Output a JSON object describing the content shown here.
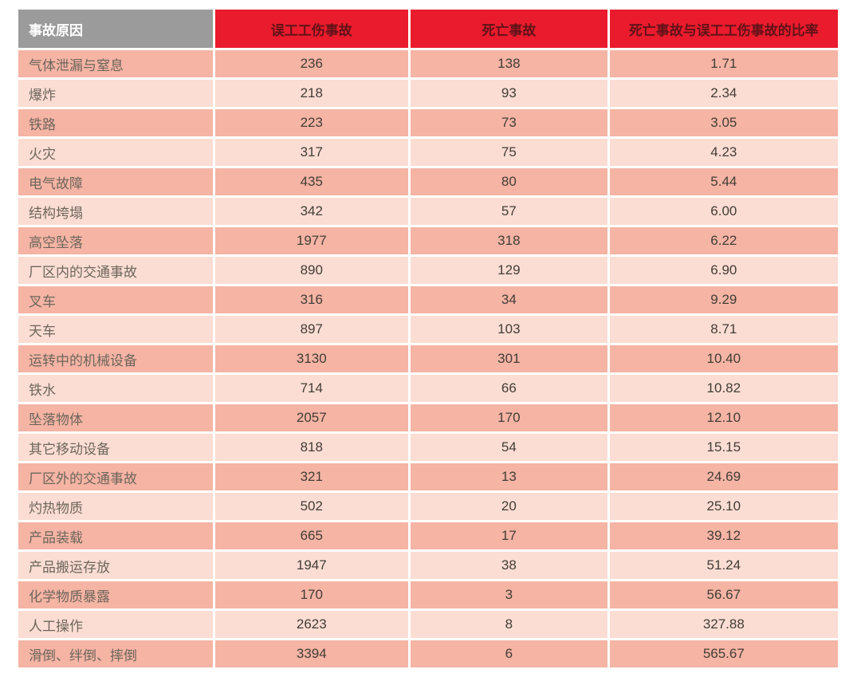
{
  "chart_data": {
    "type": "table",
    "columns": [
      "事故原因",
      "误工工伤事故",
      "死亡事故",
      "死亡事故与误工工伤事故的比率"
    ],
    "rows": [
      [
        "气体泄漏与窒息",
        "236",
        "138",
        "1.71"
      ],
      [
        "爆炸",
        "218",
        "93",
        "2.34"
      ],
      [
        "铁路",
        "223",
        "73",
        "3.05"
      ],
      [
        "火灾",
        "317",
        "75",
        "4.23"
      ],
      [
        "电气故障",
        "435",
        "80",
        "5.44"
      ],
      [
        "结构垮塌",
        "342",
        "57",
        "6.00"
      ],
      [
        "高空坠落",
        "1977",
        "318",
        "6.22"
      ],
      [
        "厂区内的交通事故",
        "890",
        "129",
        "6.90"
      ],
      [
        "叉车",
        "316",
        "34",
        "9.29"
      ],
      [
        "天车",
        "897",
        "103",
        "8.71"
      ],
      [
        "运转中的机械设备",
        "3130",
        "301",
        "10.40"
      ],
      [
        "铁水",
        "714",
        "66",
        "10.82"
      ],
      [
        "坠落物体",
        "2057",
        "170",
        "12.10"
      ],
      [
        "其它移动设备",
        "818",
        "54",
        "15.15"
      ],
      [
        "厂区外的交通事故",
        "321",
        "13",
        "24.69"
      ],
      [
        "灼热物质",
        "502",
        "20",
        "25.10"
      ],
      [
        "产品装载",
        "665",
        "17",
        "39.12"
      ],
      [
        "产品搬运存放",
        "1947",
        "38",
        "51.24"
      ],
      [
        "化学物质暴露",
        "170",
        "3",
        "56.67"
      ],
      [
        "人工操作",
        "2623",
        "8",
        "327.88"
      ],
      [
        "滑倒、绊倒、摔倒",
        "3394",
        "6",
        "565.67"
      ]
    ],
    "layout": {
      "striping": "alternating rows, odd rows darker",
      "first_column_align": "left",
      "other_columns_align": "center"
    }
  },
  "colors": {
    "header_gray": "#9c9b9b",
    "header_red": "#ea1b2c",
    "header_red_text": "#611219",
    "header_gray_text": "#ffffff",
    "row_dark": "#f5b4a4",
    "row_light": "#fbddd3",
    "label_text": "#6e665c",
    "number_text": "#433d36",
    "background": "#ffffff"
  }
}
